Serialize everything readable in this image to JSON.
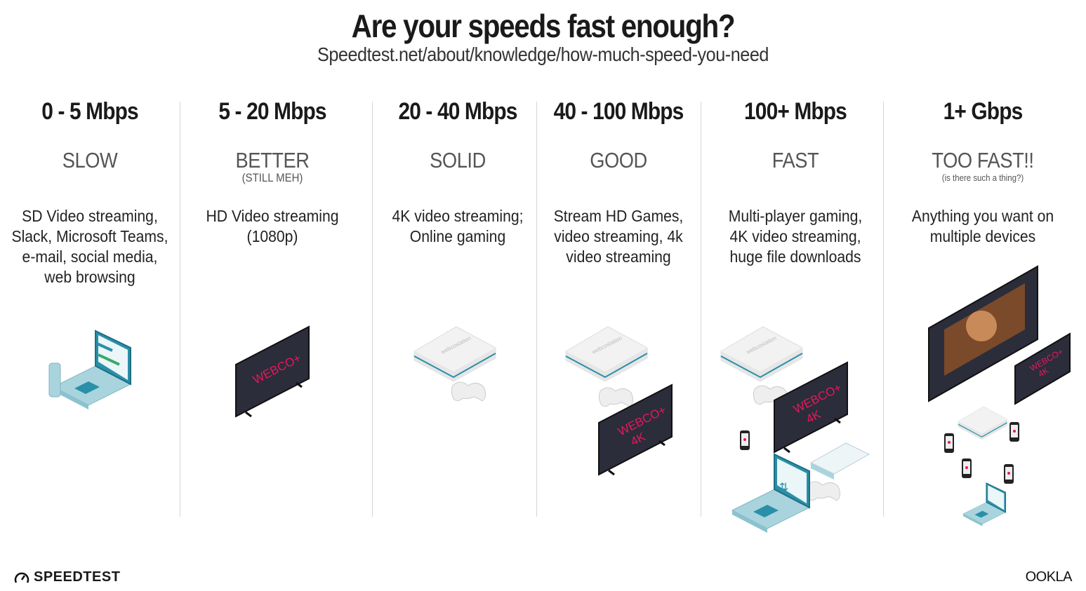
{
  "title": "Are your speeds fast enough?",
  "subtitle": "Speedtest.net/about/knowledge/how-much-speed-you-need",
  "tiers": [
    {
      "speed": "0 - 5 Mbps",
      "rating": "SLOW",
      "note": "",
      "description": "SD Video streaming, Slack, Microsoft Teams, e-mail, social media, web browsing"
    },
    {
      "speed": "5 - 20 Mbps",
      "rating": "BETTER",
      "note": "(STILL MEH)",
      "description": "HD Video streaming (1080p)"
    },
    {
      "speed": "20 - 40 Mbps",
      "rating": "SOLID",
      "note": "",
      "description": "4K video streaming; Online gaming"
    },
    {
      "speed": "40 - 100 Mbps",
      "rating": "GOOD",
      "note": "",
      "description": "Stream HD Games, video streaming, 4k video streaming"
    },
    {
      "speed": "100+ Mbps",
      "rating": "FAST",
      "note": "",
      "description": "Multi-player gaming, 4K video streaming, huge file downloads"
    },
    {
      "speed": "1+ Gbps",
      "rating": "TOO FAST!!",
      "note": "(is there such a thing?)",
      "description": "Anything you want on multiple devices"
    }
  ],
  "art": {
    "tv_brand": "WEBCO+",
    "tv_4k": "4K",
    "console_brand": "webcostation",
    "accent": "#e8175d",
    "tv_color": "#2b2d3a",
    "teal": "#2a8fa8"
  },
  "footer": {
    "left_logo": "SPEEDTEST",
    "right_logo": "OOKLA"
  }
}
